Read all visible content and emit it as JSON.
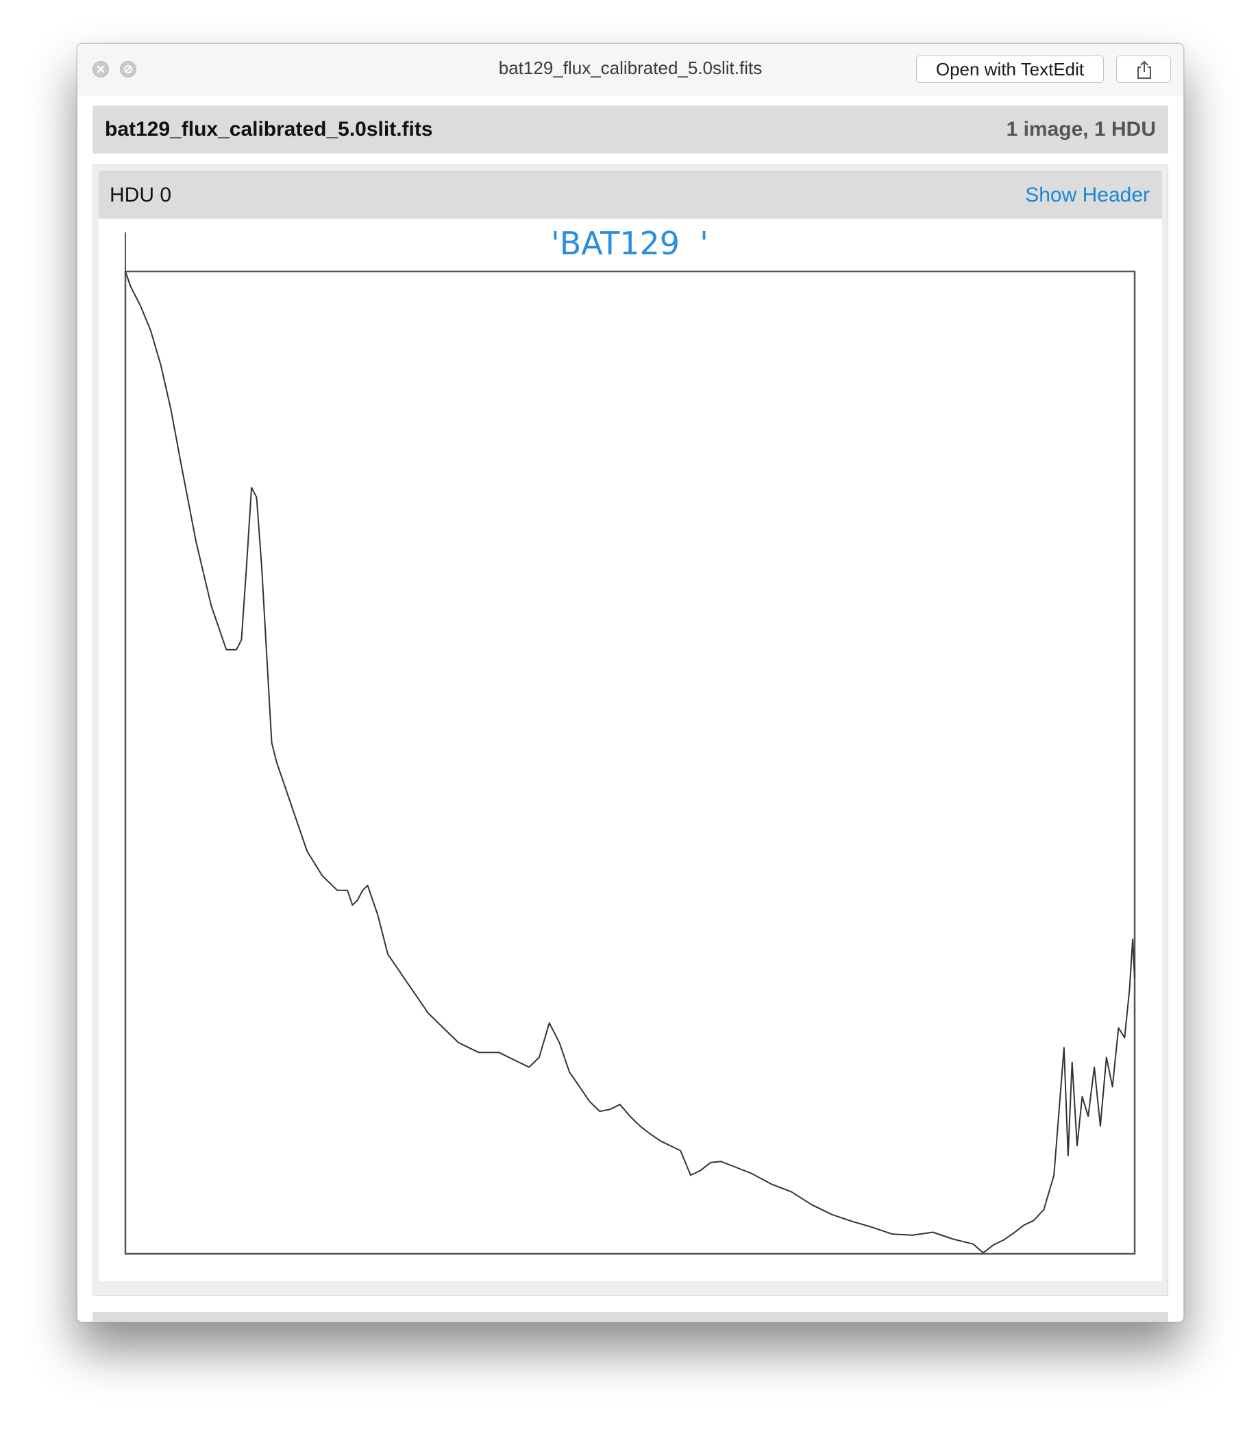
{
  "window": {
    "title": "bat129_flux_calibrated_5.0slit.fits",
    "open_with_label": "Open with TextEdit",
    "share_icon": "share-icon",
    "close_icon": "close-icon",
    "minimize_icon": "minimize-icon"
  },
  "file_header": {
    "name": "bat129_flux_calibrated_5.0slit.fits",
    "summary": "1 image, 1 HDU"
  },
  "hdu": {
    "label": "HDU 0",
    "show_header_label": "Show Header"
  },
  "colors": {
    "link": "#1a87d6",
    "plot_title": "#2a8ee0",
    "line": "#333333"
  },
  "chart_data": {
    "type": "line",
    "title": "'BAT129  '",
    "xlabel": "",
    "ylabel": "",
    "grid": false,
    "xlim": [
      0,
      100
    ],
    "ylim": [
      0,
      100
    ],
    "series": [
      {
        "x": [
          0,
          0.5,
          1.5,
          2.5,
          3.5,
          4.5,
          5.5,
          7,
          8.5,
          10,
          11,
          11.5,
          12,
          12.5,
          13,
          13.5,
          14,
          14.5,
          15,
          15.5,
          16,
          16.5,
          17,
          18,
          19.5,
          21,
          22,
          22.5,
          23,
          23.5,
          24,
          25,
          26,
          27,
          28,
          29,
          30,
          31.5,
          33,
          35,
          37,
          39,
          40,
          41,
          42,
          43,
          44,
          45,
          46,
          47,
          48,
          49,
          50,
          51,
          52,
          53,
          54,
          55,
          56,
          57,
          58,
          59,
          60,
          62,
          64,
          66,
          68,
          70,
          72,
          74,
          76,
          78,
          80,
          82,
          84,
          85,
          86,
          87,
          88,
          89,
          90,
          91,
          92,
          93,
          93.4,
          93.8,
          94.3,
          94.8,
          95.4,
          96,
          96.6,
          97.2,
          97.8,
          98.4,
          99,
          99.5,
          99.8,
          100
        ],
        "y": [
          100,
          98.5,
          96.5,
          94,
          90.5,
          86,
          80.5,
          72.5,
          66,
          61.5,
          61.5,
          62.5,
          70,
          78,
          77,
          70,
          61,
          52,
          50,
          48.5,
          47,
          45.5,
          44,
          41,
          38.5,
          37,
          37,
          35.5,
          36,
          37,
          37.5,
          34.5,
          30.5,
          29,
          27.5,
          26,
          24.5,
          23,
          21.5,
          20.5,
          20.5,
          19.5,
          19,
          20,
          23.5,
          21.5,
          18.5,
          17,
          15.5,
          14.5,
          14.7,
          15.2,
          14,
          13,
          12.2,
          11.5,
          11,
          10.5,
          8,
          8.5,
          9.3,
          9.4,
          9,
          8.2,
          7.1,
          6.3,
          5,
          4,
          3.3,
          2.7,
          2,
          1.9,
          2.2,
          1.5,
          1,
          0.1,
          0.9,
          1.4,
          2.1,
          2.9,
          3.4,
          4.5,
          8,
          21,
          10,
          19.5,
          11,
          16,
          14,
          19,
          13,
          20,
          17,
          23,
          22,
          27,
          32,
          28
        ]
      }
    ]
  }
}
